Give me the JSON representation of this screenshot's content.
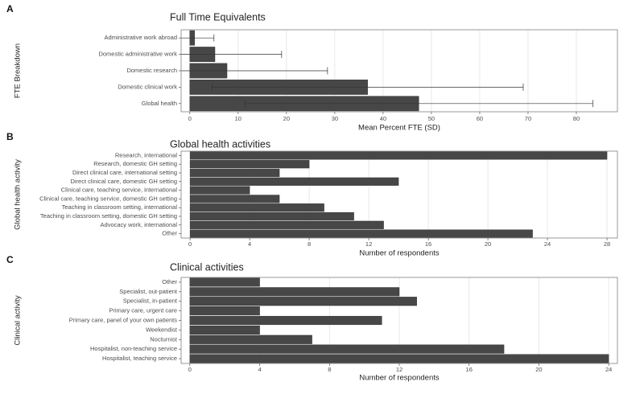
{
  "chart_data": [
    {
      "type": "bar",
      "orientation": "horizontal",
      "tag": "A",
      "title": "Full Time Equivalents",
      "x_label": "Mean Percent FTE (SD)",
      "y_label": "FTE Breakdown",
      "categories": [
        "Administrative work abroad",
        "Domestic administrative work",
        "Domestic research",
        "Domestic clinical work",
        "Global health"
      ],
      "values": [
        1,
        5.2,
        7.7,
        36.8,
        47.4
      ],
      "errors": [
        4,
        13.8,
        20.8,
        32.2,
        36
      ],
      "color": "#474747",
      "xlim": [
        -1.8,
        88.5
      ],
      "xticks": [
        0,
        10,
        20,
        30,
        40,
        50,
        60,
        70,
        80
      ],
      "grid": true
    },
    {
      "type": "bar",
      "orientation": "horizontal",
      "tag": "B",
      "title": "Global health activities",
      "x_label": "Number of respondents",
      "y_label": "Global health activity",
      "categories": [
        "Research, international",
        "Research, domestic GH setting",
        "Direct clinical care, international setting",
        "Direct clinical care, domestic GH setting",
        "Clinical care, teaching service, international",
        "Clinical care, teaching service, domestic GH setting",
        "Teaching in classroom setting, international",
        "Teaching in classroom setting, domestic GH setting",
        "Advocacy work, international",
        "Other"
      ],
      "values": [
        28,
        8,
        6,
        14,
        4,
        6,
        9,
        11,
        13,
        23
      ],
      "color": "#474747",
      "xlim": [
        -0.6,
        28.7
      ],
      "xticks": [
        0,
        4,
        8,
        12,
        16,
        20,
        24,
        28
      ],
      "grid": true
    },
    {
      "type": "bar",
      "orientation": "horizontal",
      "tag": "C",
      "title": "Clinical activities",
      "x_label": "Number of respondents",
      "y_label": "Clinical activity",
      "categories": [
        "Other",
        "Specialist, out-patient",
        "Specialist, in-patient",
        "Primary care, urgent care",
        "Primary care, panel of your own patients",
        "Weekendist",
        "Nocturnist",
        "Hospitalist, non-teaching service",
        "Hospitalist, teaching service"
      ],
      "values": [
        4,
        12,
        13,
        4,
        11,
        4,
        7,
        18,
        24
      ],
      "color": "#474747",
      "xlim": [
        -0.5,
        24.5
      ],
      "xticks": [
        0,
        4,
        8,
        12,
        16,
        20,
        24
      ],
      "grid": true
    }
  ]
}
